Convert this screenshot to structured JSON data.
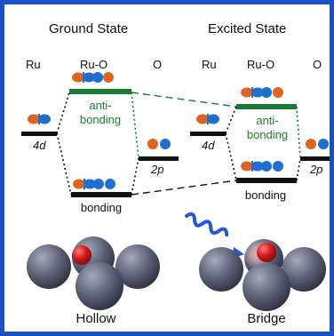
{
  "panels": {
    "ground": {
      "title": "Ground State",
      "col_ru": "Ru",
      "col_ruo": "Ru-O",
      "col_o": "O",
      "ru_orbital": "4d",
      "o_orbital": "2p",
      "antibonding_line1": "anti-",
      "antibonding_line2": "bonding",
      "bonding": "bonding",
      "site": "Hollow"
    },
    "excited": {
      "title": "Excited State",
      "col_ru": "Ru",
      "col_ruo": "Ru-O",
      "col_o": "O",
      "ru_orbital": "4d",
      "o_orbital": "2p",
      "antibonding_line1": "anti-",
      "antibonding_line2": "bonding",
      "bonding": "bonding",
      "site": "Bridge"
    }
  },
  "colors": {
    "border": "#1a50c8",
    "antibonding_level": "#1a7a35",
    "orange": "#e0641e",
    "blue": "#1e6fd0",
    "ru_atom": "#565a6e",
    "o_atom": "#d61c1c"
  },
  "icons": [
    "orbital-dumbbell-icon",
    "photon-wave-icon"
  ]
}
